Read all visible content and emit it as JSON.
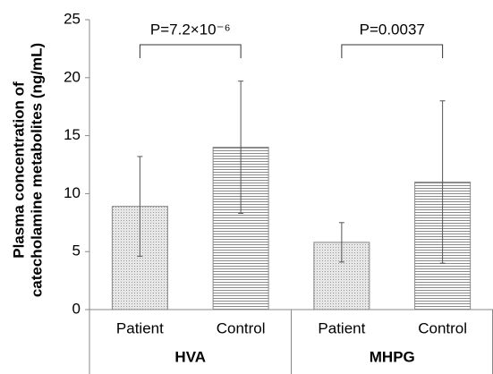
{
  "chart_data": {
    "type": "bar",
    "ylabel": [
      "Plasma concentration of",
      "catecholamine metabolites (ng/mL)"
    ],
    "categories": [
      "Patient",
      "Control",
      "Patient",
      "Control"
    ],
    "groups": [
      "HVA",
      "MHPG"
    ],
    "values": [
      8.9,
      14.0,
      5.8,
      11.0
    ],
    "errors": [
      4.3,
      5.7,
      1.7,
      7.0
    ],
    "patterns": [
      "dots",
      "lines",
      "dots",
      "lines"
    ],
    "annotations": [
      "P=7.2×10⁻⁶",
      "P=0.0037"
    ],
    "ylim": [
      0,
      25
    ],
    "yticks": [
      0,
      5,
      10,
      15,
      20,
      25
    ],
    "grid": false
  }
}
